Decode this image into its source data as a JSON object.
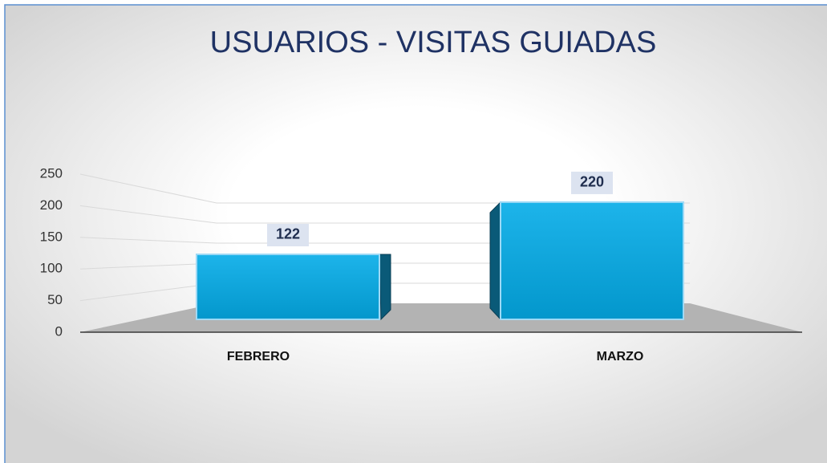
{
  "chart_data": {
    "type": "bar",
    "title": "USUARIOS - VISITAS GUIADAS",
    "categories": [
      "FEBRERO",
      "MARZO"
    ],
    "values": [
      122,
      220
    ],
    "color": "#17a6dc",
    "ylim": [
      0,
      250
    ],
    "yticks": [
      0,
      50,
      100,
      150,
      200,
      250
    ],
    "grid": true
  }
}
